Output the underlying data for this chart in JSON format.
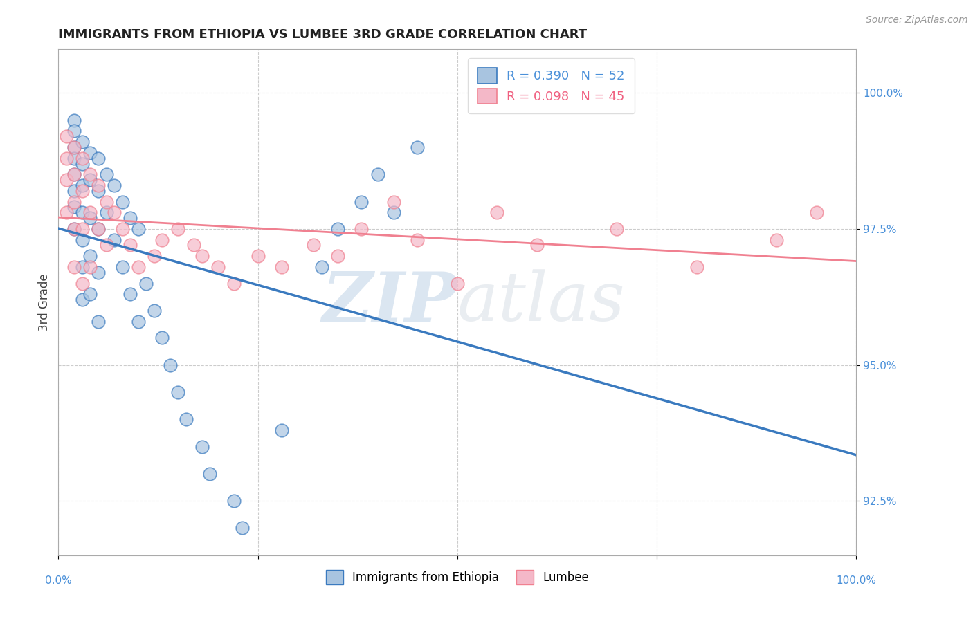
{
  "title": "IMMIGRANTS FROM ETHIOPIA VS LUMBEE 3RD GRADE CORRELATION CHART",
  "source": "Source: ZipAtlas.com",
  "ylabel": "3rd Grade",
  "xlim": [
    0.0,
    1.0
  ],
  "ylim": [
    91.5,
    100.8
  ],
  "blue_R": 0.39,
  "blue_N": 52,
  "pink_R": 0.098,
  "pink_N": 45,
  "blue_color": "#a8c4e0",
  "pink_color": "#f4b8c8",
  "blue_line_color": "#3a7abf",
  "pink_line_color": "#f08090",
  "legend_blue_label": "Immigrants from Ethiopia",
  "legend_pink_label": "Lumbee",
  "watermark_zip": "ZIP",
  "watermark_atlas": "atlas",
  "blue_x": [
    0.02,
    0.02,
    0.02,
    0.02,
    0.02,
    0.02,
    0.02,
    0.02,
    0.03,
    0.03,
    0.03,
    0.03,
    0.03,
    0.03,
    0.03,
    0.04,
    0.04,
    0.04,
    0.04,
    0.04,
    0.05,
    0.05,
    0.05,
    0.05,
    0.05,
    0.06,
    0.06,
    0.07,
    0.07,
    0.08,
    0.08,
    0.09,
    0.09,
    0.1,
    0.1,
    0.11,
    0.12,
    0.13,
    0.14,
    0.15,
    0.16,
    0.18,
    0.19,
    0.22,
    0.23,
    0.28,
    0.33,
    0.35,
    0.38,
    0.4,
    0.42,
    0.45
  ],
  "blue_y": [
    99.5,
    99.3,
    99.0,
    98.8,
    98.5,
    98.2,
    97.9,
    97.5,
    99.1,
    98.7,
    98.3,
    97.8,
    97.3,
    96.8,
    96.2,
    98.9,
    98.4,
    97.7,
    97.0,
    96.3,
    98.8,
    98.2,
    97.5,
    96.7,
    95.8,
    98.5,
    97.8,
    98.3,
    97.3,
    98.0,
    96.8,
    97.7,
    96.3,
    97.5,
    95.8,
    96.5,
    96.0,
    95.5,
    95.0,
    94.5,
    94.0,
    93.5,
    93.0,
    92.5,
    92.0,
    93.8,
    96.8,
    97.5,
    98.0,
    98.5,
    97.8,
    99.0
  ],
  "pink_x": [
    0.01,
    0.01,
    0.01,
    0.01,
    0.02,
    0.02,
    0.02,
    0.02,
    0.02,
    0.03,
    0.03,
    0.03,
    0.03,
    0.04,
    0.04,
    0.04,
    0.05,
    0.05,
    0.06,
    0.06,
    0.07,
    0.08,
    0.09,
    0.1,
    0.12,
    0.13,
    0.15,
    0.17,
    0.18,
    0.2,
    0.22,
    0.25,
    0.28,
    0.32,
    0.35,
    0.38,
    0.42,
    0.45,
    0.5,
    0.55,
    0.6,
    0.7,
    0.8,
    0.9,
    0.95
  ],
  "pink_y": [
    99.2,
    98.8,
    98.4,
    97.8,
    99.0,
    98.5,
    98.0,
    97.5,
    96.8,
    98.8,
    98.2,
    97.5,
    96.5,
    98.5,
    97.8,
    96.8,
    98.3,
    97.5,
    98.0,
    97.2,
    97.8,
    97.5,
    97.2,
    96.8,
    97.0,
    97.3,
    97.5,
    97.2,
    97.0,
    96.8,
    96.5,
    97.0,
    96.8,
    97.2,
    97.0,
    97.5,
    98.0,
    97.3,
    96.5,
    97.8,
    97.2,
    97.5,
    96.8,
    97.3,
    97.8
  ]
}
